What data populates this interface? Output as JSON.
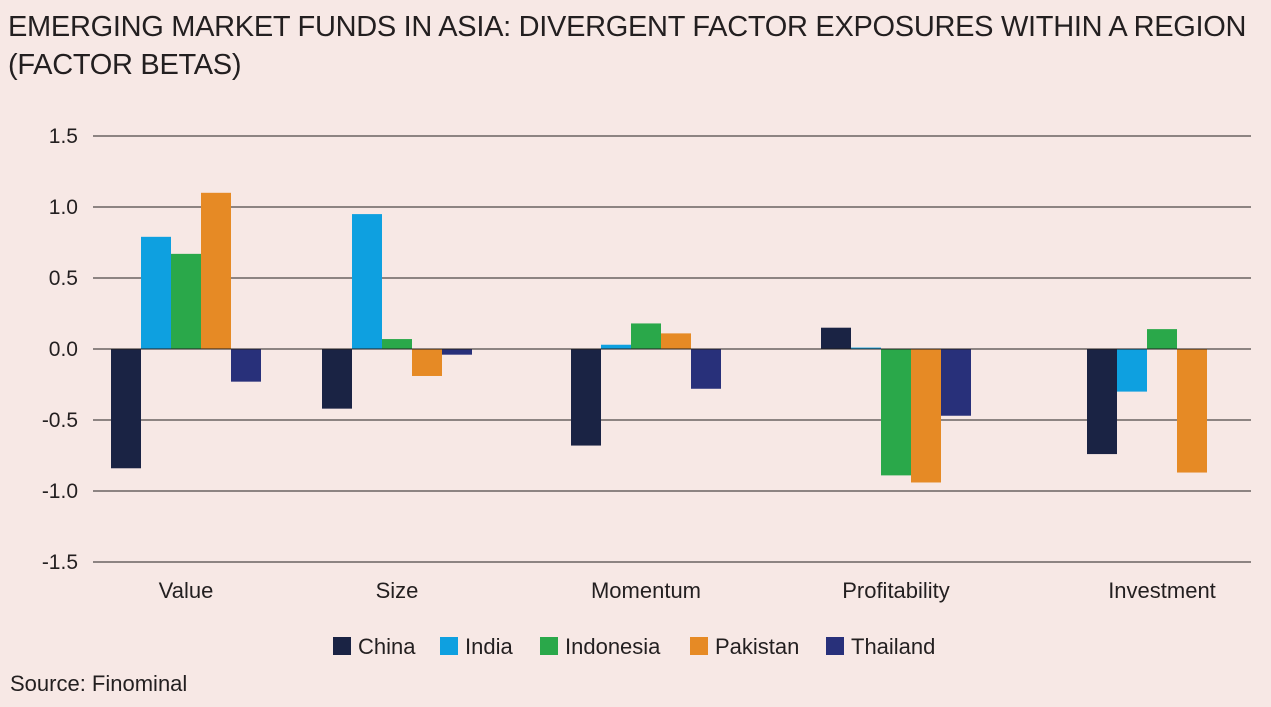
{
  "title": {
    "line1": "EMERGING MARKET FUNDS IN ASIA: DIVERGENT FACTOR EXPOSURES WITHIN A REGION",
    "line2": "(FACTOR BETAS)"
  },
  "source": "Source: Finominal",
  "colors": {
    "China": "#1a2344",
    "India": "#0ea0e0",
    "Indonesia": "#2aa84a",
    "Pakistan": "#e68a25",
    "Thailand": "#28307a",
    "grid": "#231f20",
    "background": "#f7e8e5"
  },
  "chart_data": {
    "type": "bar",
    "title": "EMERGING MARKET FUNDS IN ASIA: DIVERGENT FACTOR EXPOSURES WITHIN A REGION (FACTOR BETAS)",
    "xlabel": "",
    "ylabel": "",
    "categories": [
      "Value",
      "Size",
      "Momentum",
      "Profitability",
      "Investment"
    ],
    "ylim": [
      -1.5,
      1.5
    ],
    "yticks": [
      "1.5",
      "1.0",
      "0.5",
      "0.0",
      "-0.5",
      "-1.0",
      "-1.5"
    ],
    "ytick_values": [
      1.5,
      1.0,
      0.5,
      0.0,
      -0.5,
      -1.0,
      -1.5
    ],
    "grid": true,
    "legend_position": "bottom-center",
    "series": [
      {
        "name": "China",
        "values": [
          -0.84,
          -0.42,
          -0.68,
          0.15,
          -0.74
        ]
      },
      {
        "name": "India",
        "values": [
          0.79,
          0.95,
          0.03,
          0.01,
          -0.3
        ]
      },
      {
        "name": "Indonesia",
        "values": [
          0.67,
          0.07,
          0.18,
          -0.89,
          0.14
        ]
      },
      {
        "name": "Pakistan",
        "values": [
          1.1,
          -0.19,
          0.11,
          -0.94,
          -0.87
        ]
      },
      {
        "name": "Thailand",
        "values": [
          -0.23,
          -0.04,
          -0.28,
          -0.47,
          0.0
        ]
      }
    ]
  }
}
